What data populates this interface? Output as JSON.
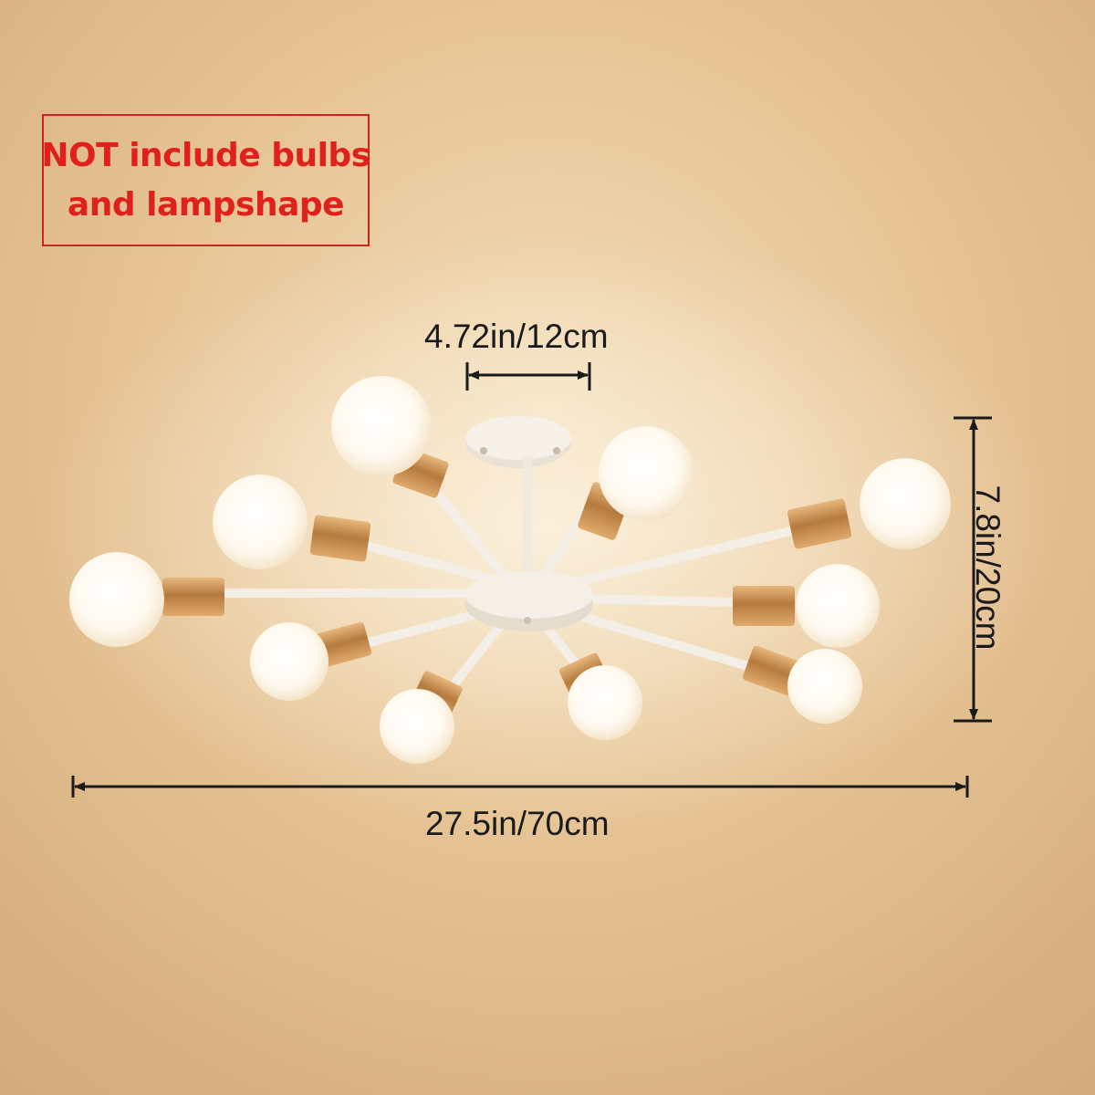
{
  "notice": {
    "line1": "NOT include bulbs",
    "line2": "and lampshape"
  },
  "dimensions": {
    "canopy_width": "4.72in/12cm",
    "total_width": "27.5in/70cm",
    "height": "7.8in/20cm"
  },
  "colors": {
    "ceiling": "#e7c496",
    "notice_red": "#e0201a",
    "fixture_white": "#f2ede4",
    "socket_gold": "#c98f4f"
  }
}
